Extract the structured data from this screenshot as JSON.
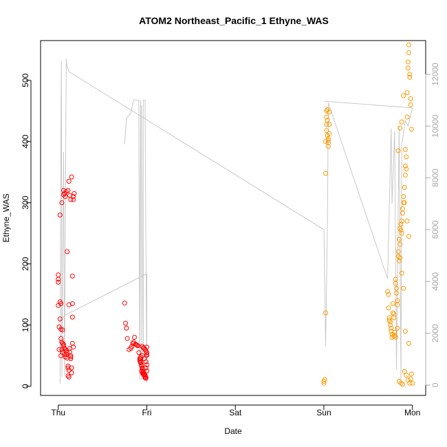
{
  "chart_data": {
    "type": "scatter",
    "title": "ATOM2 Northeast_Pacific_1 Ethyne_WAS",
    "xlabel": "Date",
    "ylabel": "Ethyne_WAS",
    "x_tick_labels": [
      "Thu",
      "Fri",
      "Sat",
      "Sun",
      "Mon"
    ],
    "xlim": [
      -0.2,
      4.15
    ],
    "ylim": [
      -15,
      565
    ],
    "y_ticks": [
      0,
      100,
      200,
      300,
      400,
      500
    ],
    "y2_ticks": [
      0,
      2000,
      4000,
      6000,
      8000,
      10000,
      12000
    ],
    "y2lim": [
      -400,
      13300
    ],
    "grid": false,
    "colors": {
      "flight1": "#ff0000",
      "flight2": "#ff9900",
      "altitude": "#c8c8c8",
      "box": "#000000",
      "right_axis": "#a8a8a8"
    },
    "series": [
      {
        "color": "#ff0000",
        "x": [
          0.0,
          0.0,
          0.0,
          0.0,
          0.01,
          0.02,
          0.02,
          0.03,
          0.03,
          0.03,
          0.04,
          0.04,
          0.05,
          0.05,
          0.06,
          0.06,
          0.07,
          0.07,
          0.08,
          0.08,
          0.09,
          0.09,
          0.1,
          0.1,
          0.11,
          0.11,
          0.11,
          0.12,
          0.12,
          0.13,
          0.13,
          0.14,
          0.14,
          0.14,
          0.15,
          0.15,
          0.16,
          0.16,
          0.17,
          0.17,
          0.18,
          0.02,
          0.04,
          0.06,
          0.08,
          0.1,
          0.12,
          0.15,
          0.16,
          0.03,
          0.05,
          0.07,
          0.09,
          0.11,
          0.13,
          0.14,
          0.16,
          0.17,
          0.01,
          0.06,
          0.12
        ],
        "y": [
          170,
          175,
          182,
          132,
          97,
          110,
          138,
          135,
          78,
          50,
          72,
          60,
          55,
          70,
          68,
          66,
          62,
          52,
          48,
          60,
          58,
          52,
          55,
          46,
          33,
          30,
          17,
          15,
          26,
          62,
          56,
          50,
          48,
          45,
          22,
          30,
          180,
          135,
          305,
          310,
          315,
          280,
          300,
          313,
          310,
          220,
          335,
          342,
          113,
          93,
          92,
          315,
          318,
          320,
          312,
          305,
          70,
          64,
          60,
          320,
          133
        ],
        "x_note": "days from Thu 00:00 (approx.)"
      },
      {
        "color": "#ff0000",
        "x": [
          0.75,
          0.76,
          0.77,
          0.78,
          0.8,
          0.82,
          0.83,
          0.84,
          0.85,
          0.86,
          0.87,
          0.88,
          0.89,
          0.9,
          0.91,
          0.92,
          0.93,
          0.94,
          0.95,
          0.96,
          0.97,
          0.98,
          0.99,
          1.0,
          1.0,
          0.92,
          0.93,
          0.94,
          0.95,
          0.96,
          0.97,
          0.98,
          0.99,
          1.0,
          0.93,
          0.94,
          0.95,
          0.96,
          0.97,
          0.98,
          0.99,
          1.0,
          0.95,
          0.96,
          0.97,
          0.98,
          0.99,
          1.0,
          1.0,
          0.93,
          0.95,
          0.97,
          0.99,
          1.0
        ],
        "y": [
          136,
          103,
          95,
          78,
          60,
          62,
          65,
          70,
          72,
          80,
          69,
          68,
          67,
          66,
          55,
          45,
          40,
          35,
          30,
          25,
          20,
          18,
          15,
          50,
          55,
          42,
          38,
          33,
          28,
          22,
          20,
          16,
          30,
          35,
          48,
          25,
          22,
          20,
          18,
          14,
          13,
          25,
          65,
          63,
          62,
          60,
          58,
          55,
          52,
          45,
          50,
          45,
          40,
          64
        ]
      },
      {
        "color": "#ff9900",
        "x": [
          3.0,
          3.0,
          3.01,
          3.02,
          3.02,
          3.02,
          3.03,
          3.03,
          3.03,
          3.03,
          3.04,
          3.04,
          3.04,
          3.05,
          3.05,
          3.05,
          3.05,
          3.06,
          3.06,
          3.06
        ],
        "y": [
          5,
          8,
          11,
          120,
          348,
          400,
          418,
          428,
          440,
          450,
          452,
          435,
          410,
          402,
          398,
          392,
          405,
          413,
          428,
          448
        ]
      },
      {
        "color": "#ff9900",
        "x": [
          3.72,
          3.73,
          3.73,
          3.74,
          3.74,
          3.75,
          3.75,
          3.76,
          3.76,
          3.77,
          3.77,
          3.78,
          3.78,
          3.79,
          3.79,
          3.8,
          3.8,
          3.81,
          3.81,
          3.82,
          3.82,
          3.83,
          3.83,
          3.84,
          3.84,
          3.85,
          3.85,
          3.86,
          3.86,
          3.87,
          3.87,
          3.88,
          3.88,
          3.89,
          3.89,
          3.9,
          3.9,
          3.91,
          3.91,
          3.92,
          3.92,
          3.93,
          3.93,
          3.94,
          3.94,
          3.95,
          3.95,
          3.96,
          3.96,
          3.97,
          3.97,
          3.98,
          3.98,
          3.99,
          3.99,
          4.0,
          3.84,
          3.86,
          3.88,
          3.9,
          3.92,
          3.94,
          3.96,
          3.98,
          3.85,
          3.87,
          3.89,
          3.91,
          3.93,
          3.95,
          3.97,
          3.79,
          3.81,
          3.83,
          3.86,
          3.88,
          3.9,
          3.92,
          3.96
        ],
        "y": [
          155,
          150,
          128,
          112,
          108,
          105,
          100,
          95,
          90,
          85,
          80,
          135,
          120,
          118,
          112,
          88,
          83,
          175,
          168,
          160,
          152,
          140,
          133,
          220,
          212,
          205,
          240,
          232,
          258,
          265,
          255,
          250,
          270,
          290,
          283,
          300,
          310,
          300,
          325,
          345,
          360,
          375,
          355,
          440,
          480,
          520,
          530,
          558,
          545,
          510,
          505,
          470,
          460,
          420,
          20,
          5,
          385,
          422,
          432,
          475,
          387,
          270,
          245,
          12,
          8,
          5,
          3,
          24,
          18,
          10,
          5,
          82,
          80,
          95,
          210,
          185,
          160,
          90,
          70
        ]
      }
    ],
    "altitude_note": "gray line on right axis (0-12000), drawn as polyline"
  }
}
